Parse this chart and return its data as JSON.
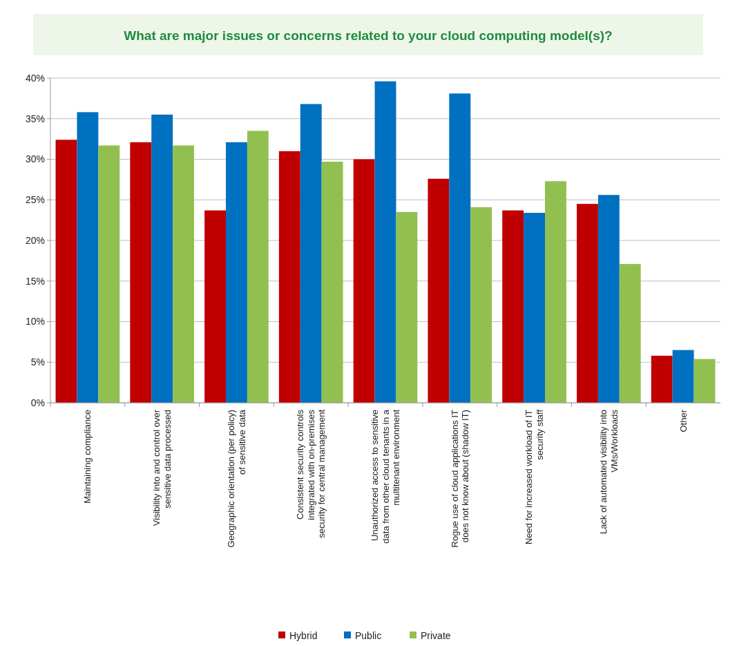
{
  "chart_data": {
    "type": "bar",
    "title": "What are major issues or concerns related to your cloud computing model(s)?",
    "categories": [
      "Maintaining compliance",
      "Visibility into and control over sensitive data processed",
      "Geographic orientation (per policy) of sensitive data",
      "Consistent security controls integrated with on-premises security for central management",
      "Unauthorized access to sensitive data from other cloud tenants in a multitenant environment",
      "Rogue use of cloud applications IT does not know about (shadow IT)",
      "Need for increased workload of IT security staff",
      "Lack of automated visibility into VMs/Workloads",
      "Other"
    ],
    "series": [
      {
        "name": "Hybrid",
        "color": "#c00000",
        "values": [
          32.4,
          32.1,
          23.7,
          31.0,
          30.0,
          27.6,
          23.7,
          24.5,
          5.8
        ]
      },
      {
        "name": "Public",
        "color": "#0070c0",
        "values": [
          35.8,
          35.5,
          32.1,
          36.8,
          39.6,
          38.1,
          23.4,
          25.6,
          6.5
        ]
      },
      {
        "name": "Private",
        "color": "#92c050",
        "values": [
          31.7,
          31.7,
          33.5,
          29.7,
          23.5,
          24.1,
          27.3,
          17.1,
          5.4
        ]
      }
    ],
    "ylim": [
      0,
      40
    ],
    "yticks": [
      {
        "value": 0,
        "label": "0%"
      },
      {
        "value": 5,
        "label": "5%"
      },
      {
        "value": 10,
        "label": "10%"
      },
      {
        "value": 15,
        "label": "15%"
      },
      {
        "value": 20,
        "label": "20%"
      },
      {
        "value": 25,
        "label": "25%"
      },
      {
        "value": 30,
        "label": "30%"
      },
      {
        "value": 35,
        "label": "35%"
      },
      {
        "value": 40,
        "label": "40%"
      }
    ],
    "grid": "y",
    "legend": "bottom"
  }
}
